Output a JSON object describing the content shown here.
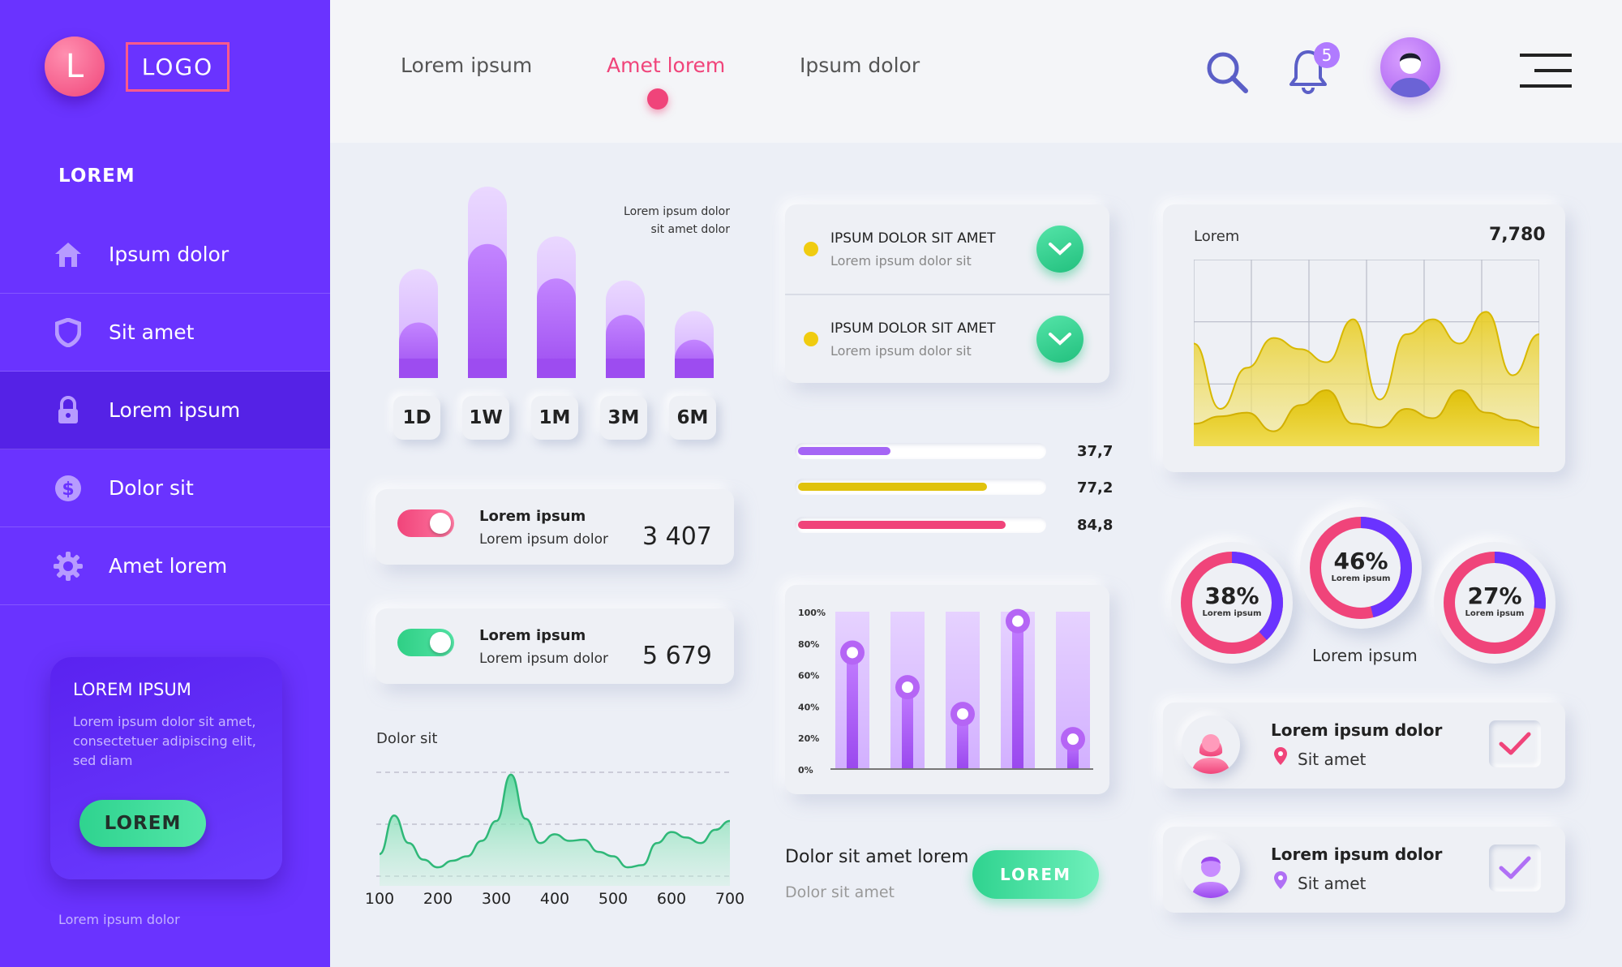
{
  "sidebar": {
    "logo_letter": "L",
    "logo_text": "LOGO",
    "heading": "LOREM",
    "items": [
      {
        "label": "Ipsum dolor",
        "icon": "home-icon"
      },
      {
        "label": "Sit amet",
        "icon": "shield-icon"
      },
      {
        "label": "Lorem ipsum",
        "icon": "lock-icon",
        "active": true
      },
      {
        "label": "Dolor sit",
        "icon": "dollar-icon"
      },
      {
        "label": "Amet lorem",
        "icon": "gear-icon"
      }
    ],
    "promo": {
      "title": "LOREM IPSUM",
      "text": "Lorem ipsum dolor sit amet, consectetuer adipiscing elit, sed diam",
      "button": "LOREM"
    },
    "footer": "Lorem ipsum dolor"
  },
  "header": {
    "tabs": [
      {
        "label": "Lorem ipsum"
      },
      {
        "label": "Amet lorem",
        "active": true
      },
      {
        "label": "Ipsum dolor"
      }
    ],
    "notification_count": "5",
    "icons": [
      "search-icon",
      "bell-icon",
      "avatar",
      "menu-icon"
    ]
  },
  "period_chart": {
    "note_line1": "Lorem ipsum dolor",
    "note_line2": "sit amet dolor",
    "periods": [
      "1D",
      "1W",
      "1M",
      "3M",
      "6M"
    ],
    "chart_data": {
      "type": "bar",
      "categories": [
        "1D",
        "1W",
        "1M",
        "3M",
        "6M"
      ],
      "series": [
        {
          "values": [
            57,
            100,
            74,
            51,
            35
          ]
        },
        {
          "values": [
            29,
            70,
            52,
            33,
            20
          ]
        }
      ]
    }
  },
  "stats": [
    {
      "title": "Lorem ipsum",
      "subtitle": "Lorem ipsum dolor",
      "value": "3 407",
      "toggle_color": "#f0447a"
    },
    {
      "title": "Lorem ipsum",
      "subtitle": "Lorem ipsum dolor",
      "value": "5 679",
      "toggle_color": "#2fcf85"
    }
  ],
  "line_chart": {
    "title": "Dolor sit",
    "chart_data": {
      "type": "area",
      "x_ticks": [
        "100",
        "200",
        "300",
        "400",
        "500",
        "600",
        "700"
      ],
      "x": [
        100,
        125,
        150,
        175,
        200,
        225,
        250,
        275,
        300,
        325,
        350,
        375,
        400,
        425,
        450,
        475,
        500,
        525,
        550,
        575,
        600,
        625,
        650,
        675,
        700
      ],
      "values": [
        20,
        55,
        30,
        15,
        8,
        14,
        18,
        32,
        50,
        92,
        52,
        30,
        38,
        32,
        33,
        22,
        18,
        8,
        10,
        30,
        40,
        35,
        30,
        42,
        50
      ]
    }
  },
  "checklist": [
    {
      "title": "IPSUM DOLOR  SIT AMET",
      "subtitle": "Lorem ipsum dolor sit"
    },
    {
      "title": "IPSUM DOLOR  SIT AMET",
      "subtitle": "Lorem ipsum dolor sit"
    }
  ],
  "progress": [
    {
      "value": 37.7,
      "label": "37,7",
      "color": "#a565f5"
    },
    {
      "value": 77.2,
      "label": "77,2",
      "color": "#e0c20c"
    },
    {
      "value": 84.8,
      "label": "84,8",
      "color": "#f0447a"
    }
  ],
  "lollipop_chart": {
    "chart_data": {
      "type": "bar",
      "y_ticks": [
        "100%",
        "80%",
        "60%",
        "40%",
        "20%",
        "0%"
      ],
      "ylim": [
        0,
        100
      ],
      "values": [
        74,
        52,
        35,
        94,
        19
      ]
    }
  },
  "cta": {
    "title": "Dolor sit amet lorem",
    "subtitle": "Dolor sit amet",
    "button": "LOREM"
  },
  "area_chart": {
    "label": "Lorem",
    "value": "7,780",
    "chart_data": {
      "type": "area",
      "series": [
        {
          "values": [
            55,
            20,
            42,
            58,
            52,
            45,
            68,
            25,
            60,
            68,
            55,
            72,
            38,
            60
          ]
        },
        {
          "values": [
            12,
            16,
            18,
            8,
            22,
            30,
            12,
            10,
            20,
            15,
            30,
            18,
            14,
            10
          ]
        }
      ]
    }
  },
  "donuts": {
    "caption": "Lorem ipsum",
    "items": [
      {
        "percent": "38%",
        "label": "Lorem ipsum",
        "value": 38
      },
      {
        "percent": "46%",
        "label": "Lorem ipsum",
        "value": 46
      },
      {
        "percent": "27%",
        "label": "Lorem ipsum",
        "value": 27
      }
    ]
  },
  "people": [
    {
      "name": "Lorem ipsum dolor",
      "location": "Sit amet",
      "gender": "female",
      "check_color": "#f0447a"
    },
    {
      "name": "Lorem ipsum dolor",
      "location": "Sit amet",
      "gender": "male",
      "check_color": "#b070f5"
    }
  ]
}
